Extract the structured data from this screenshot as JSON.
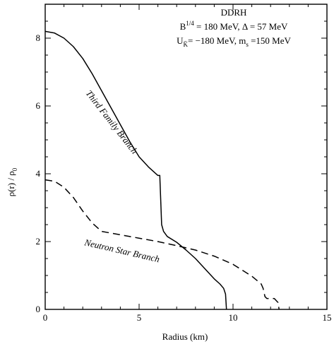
{
  "chart_data": {
    "type": "line",
    "title": "",
    "xlabel": "Radius (km)",
    "ylabel": "ρ(r) / ρ",
    "ylabel_sub": "0",
    "xlim": [
      0,
      15
    ],
    "ylim": [
      0,
      9
    ],
    "xticks": [
      0,
      5,
      10,
      15
    ],
    "yticks": [
      0,
      2,
      4,
      6,
      8
    ],
    "xtick_labels": [
      "0",
      "5",
      "10",
      "15"
    ],
    "ytick_labels": [
      "0",
      "2",
      "4",
      "6",
      "8"
    ],
    "grid": false,
    "legend": "none",
    "annotations": {
      "line1": "DDRH",
      "line2_pre": "B",
      "line2_sup": "1/4",
      "line2_mid": " = 180 MeV, ",
      "line2_post": "Δ = 57 MeV",
      "line3_pre": "U",
      "line3_sub": "K̄",
      "line3_mid": "= −180 MeV,  m",
      "line3_sub2": "s",
      "line3_post": " =150 MeV"
    },
    "series": [
      {
        "name": "Third Family Branch",
        "style": "solid",
        "x": [
          0,
          0.5,
          1.0,
          1.5,
          2.0,
          2.5,
          3.0,
          3.5,
          4.0,
          4.5,
          5.0,
          5.5,
          6.0,
          6.1,
          6.2,
          6.3,
          6.5,
          7.0,
          7.5,
          8.0,
          8.5,
          9.0,
          9.3,
          9.5,
          9.6,
          9.65
        ],
        "values": [
          8.2,
          8.15,
          8.0,
          7.75,
          7.4,
          6.95,
          6.45,
          5.95,
          5.45,
          4.95,
          4.5,
          4.2,
          3.95,
          3.95,
          2.5,
          2.3,
          2.15,
          1.98,
          1.75,
          1.5,
          1.2,
          0.9,
          0.75,
          0.62,
          0.45,
          0.0
        ]
      },
      {
        "name": "Neutron Star Branch",
        "style": "dashed",
        "x": [
          0,
          0.5,
          1.0,
          1.5,
          2.0,
          2.5,
          3.0,
          4.0,
          5.0,
          6.0,
          7.0,
          8.0,
          9.0,
          10.0,
          11.0,
          11.5,
          11.6,
          11.7,
          11.8,
          12.2,
          12.4,
          12.45
        ],
        "values": [
          3.82,
          3.78,
          3.6,
          3.3,
          2.9,
          2.55,
          2.3,
          2.2,
          2.1,
          2.0,
          1.88,
          1.75,
          1.57,
          1.33,
          0.98,
          0.75,
          0.62,
          0.38,
          0.32,
          0.32,
          0.2,
          0.0
        ]
      }
    ]
  }
}
